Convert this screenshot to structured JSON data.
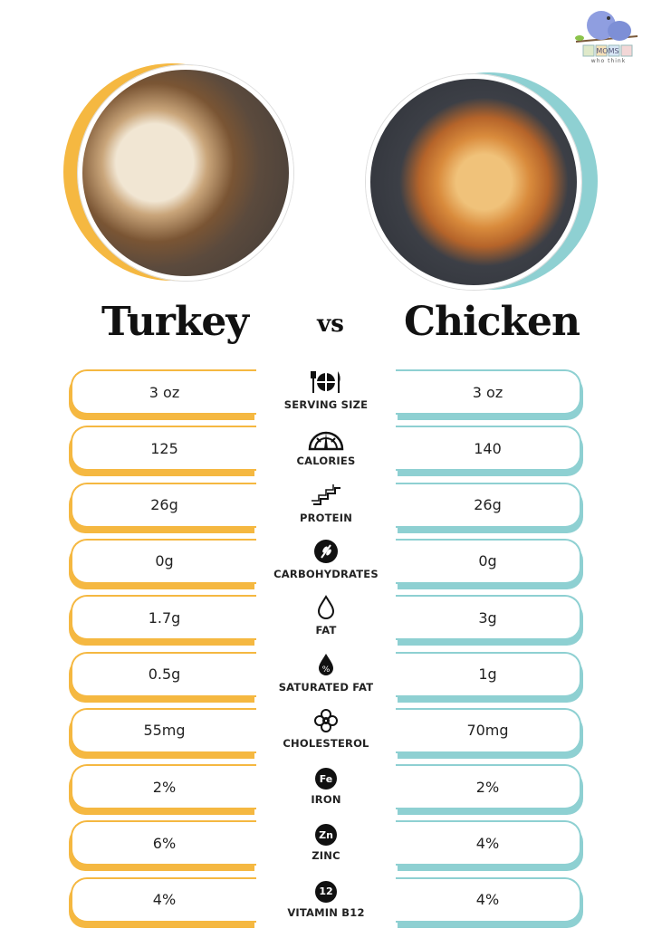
{
  "logo": {
    "text": "MOMS",
    "subtext": "who think"
  },
  "colors": {
    "turkey": "#F5B841",
    "chicken": "#8ED0D2"
  },
  "header": {
    "left": "Turkey",
    "vs": "vs",
    "right": "Chicken"
  },
  "rows": [
    {
      "label": "SERVING SIZE",
      "icon": "plate-fork-knife-icon",
      "turkey": "3 oz",
      "chicken": "3 oz"
    },
    {
      "label": "CALORIES",
      "icon": "gauge-icon",
      "turkey": "125",
      "chicken": "140"
    },
    {
      "label": "PROTEIN",
      "icon": "protein-chain-icon",
      "turkey": "26g",
      "chicken": "26g"
    },
    {
      "label": "CARBOHYDRATES",
      "icon": "wheat-icon",
      "turkey": "0g",
      "chicken": "0g"
    },
    {
      "label": "FAT",
      "icon": "droplet-icon",
      "turkey": "1.7g",
      "chicken": "3g"
    },
    {
      "label": "SATURATED FAT",
      "icon": "percent-droplet-icon",
      "turkey": "0.5g",
      "chicken": "1g"
    },
    {
      "label": "CHOLESTEROL",
      "icon": "molecule-icon",
      "turkey": "55mg",
      "chicken": "70mg"
    },
    {
      "label": "IRON",
      "icon": "fe-badge-icon",
      "badge": "Fe",
      "turkey": "2%",
      "chicken": "2%"
    },
    {
      "label": "ZINC",
      "icon": "zn-badge-icon",
      "badge": "Zn",
      "turkey": "6%",
      "chicken": "4%"
    },
    {
      "label": "VITAMIN B12",
      "icon": "b12-badge-icon",
      "badge": "12",
      "turkey": "4%",
      "chicken": "4%"
    }
  ]
}
